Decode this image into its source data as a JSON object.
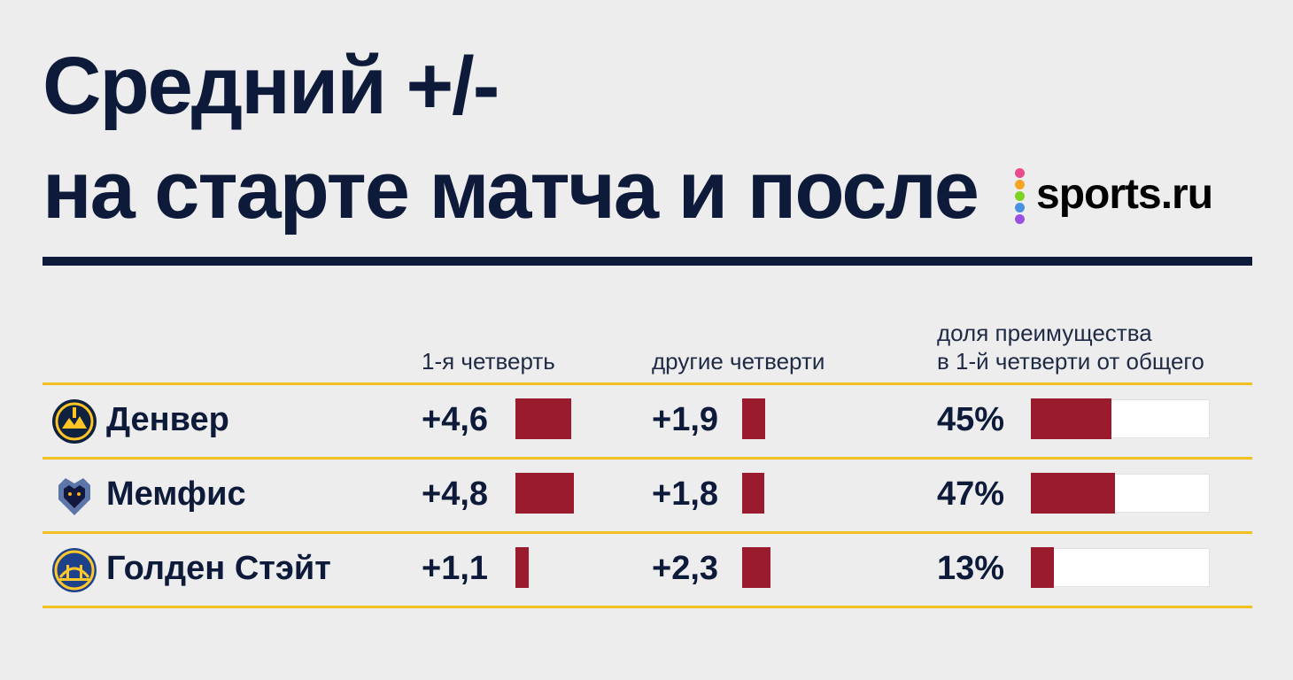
{
  "title": {
    "line1": "Средний +/-",
    "line2": "на старте матча и после"
  },
  "logo": {
    "text": "sports.ru",
    "icon": "sports-ru-dots-icon",
    "dot_colors": [
      "#e84a8c",
      "#f5a623",
      "#7ed321",
      "#4a90e2",
      "#9b51e0"
    ]
  },
  "colors": {
    "accent_dark": "#0d1a3a",
    "bar": "#9b1b2e",
    "row_divider": "#f2c01e"
  },
  "chart_data": {
    "type": "table",
    "title": "Средний +/- на старте матча и после",
    "columns": [
      {
        "key": "first_q",
        "label": "1-я четверть"
      },
      {
        "key": "other_q",
        "label": "другие четверти"
      },
      {
        "key": "share",
        "label_line1": "доля преимущества",
        "label_line2": "в 1-й четверти от общего"
      }
    ],
    "rows": [
      {
        "team": "Денвер",
        "icon": "denver-nuggets-logo-icon",
        "first_q_label": "+4,6",
        "first_q": 4.6,
        "other_q_label": "+1,9",
        "other_q": 1.9,
        "share_label": "45%",
        "share": 45
      },
      {
        "team": "Мемфис",
        "icon": "memphis-grizzlies-logo-icon",
        "first_q_label": "+4,8",
        "first_q": 4.8,
        "other_q_label": "+1,8",
        "other_q": 1.8,
        "share_label": "47%",
        "share": 47
      },
      {
        "team": "Голден Стэйт",
        "icon": "golden-state-warriors-logo-icon",
        "first_q_label": "+1,1",
        "first_q": 1.1,
        "other_q_label": "+2,3",
        "other_q": 2.3,
        "share_label": "13%",
        "share": 13
      }
    ],
    "share_max": 100
  }
}
